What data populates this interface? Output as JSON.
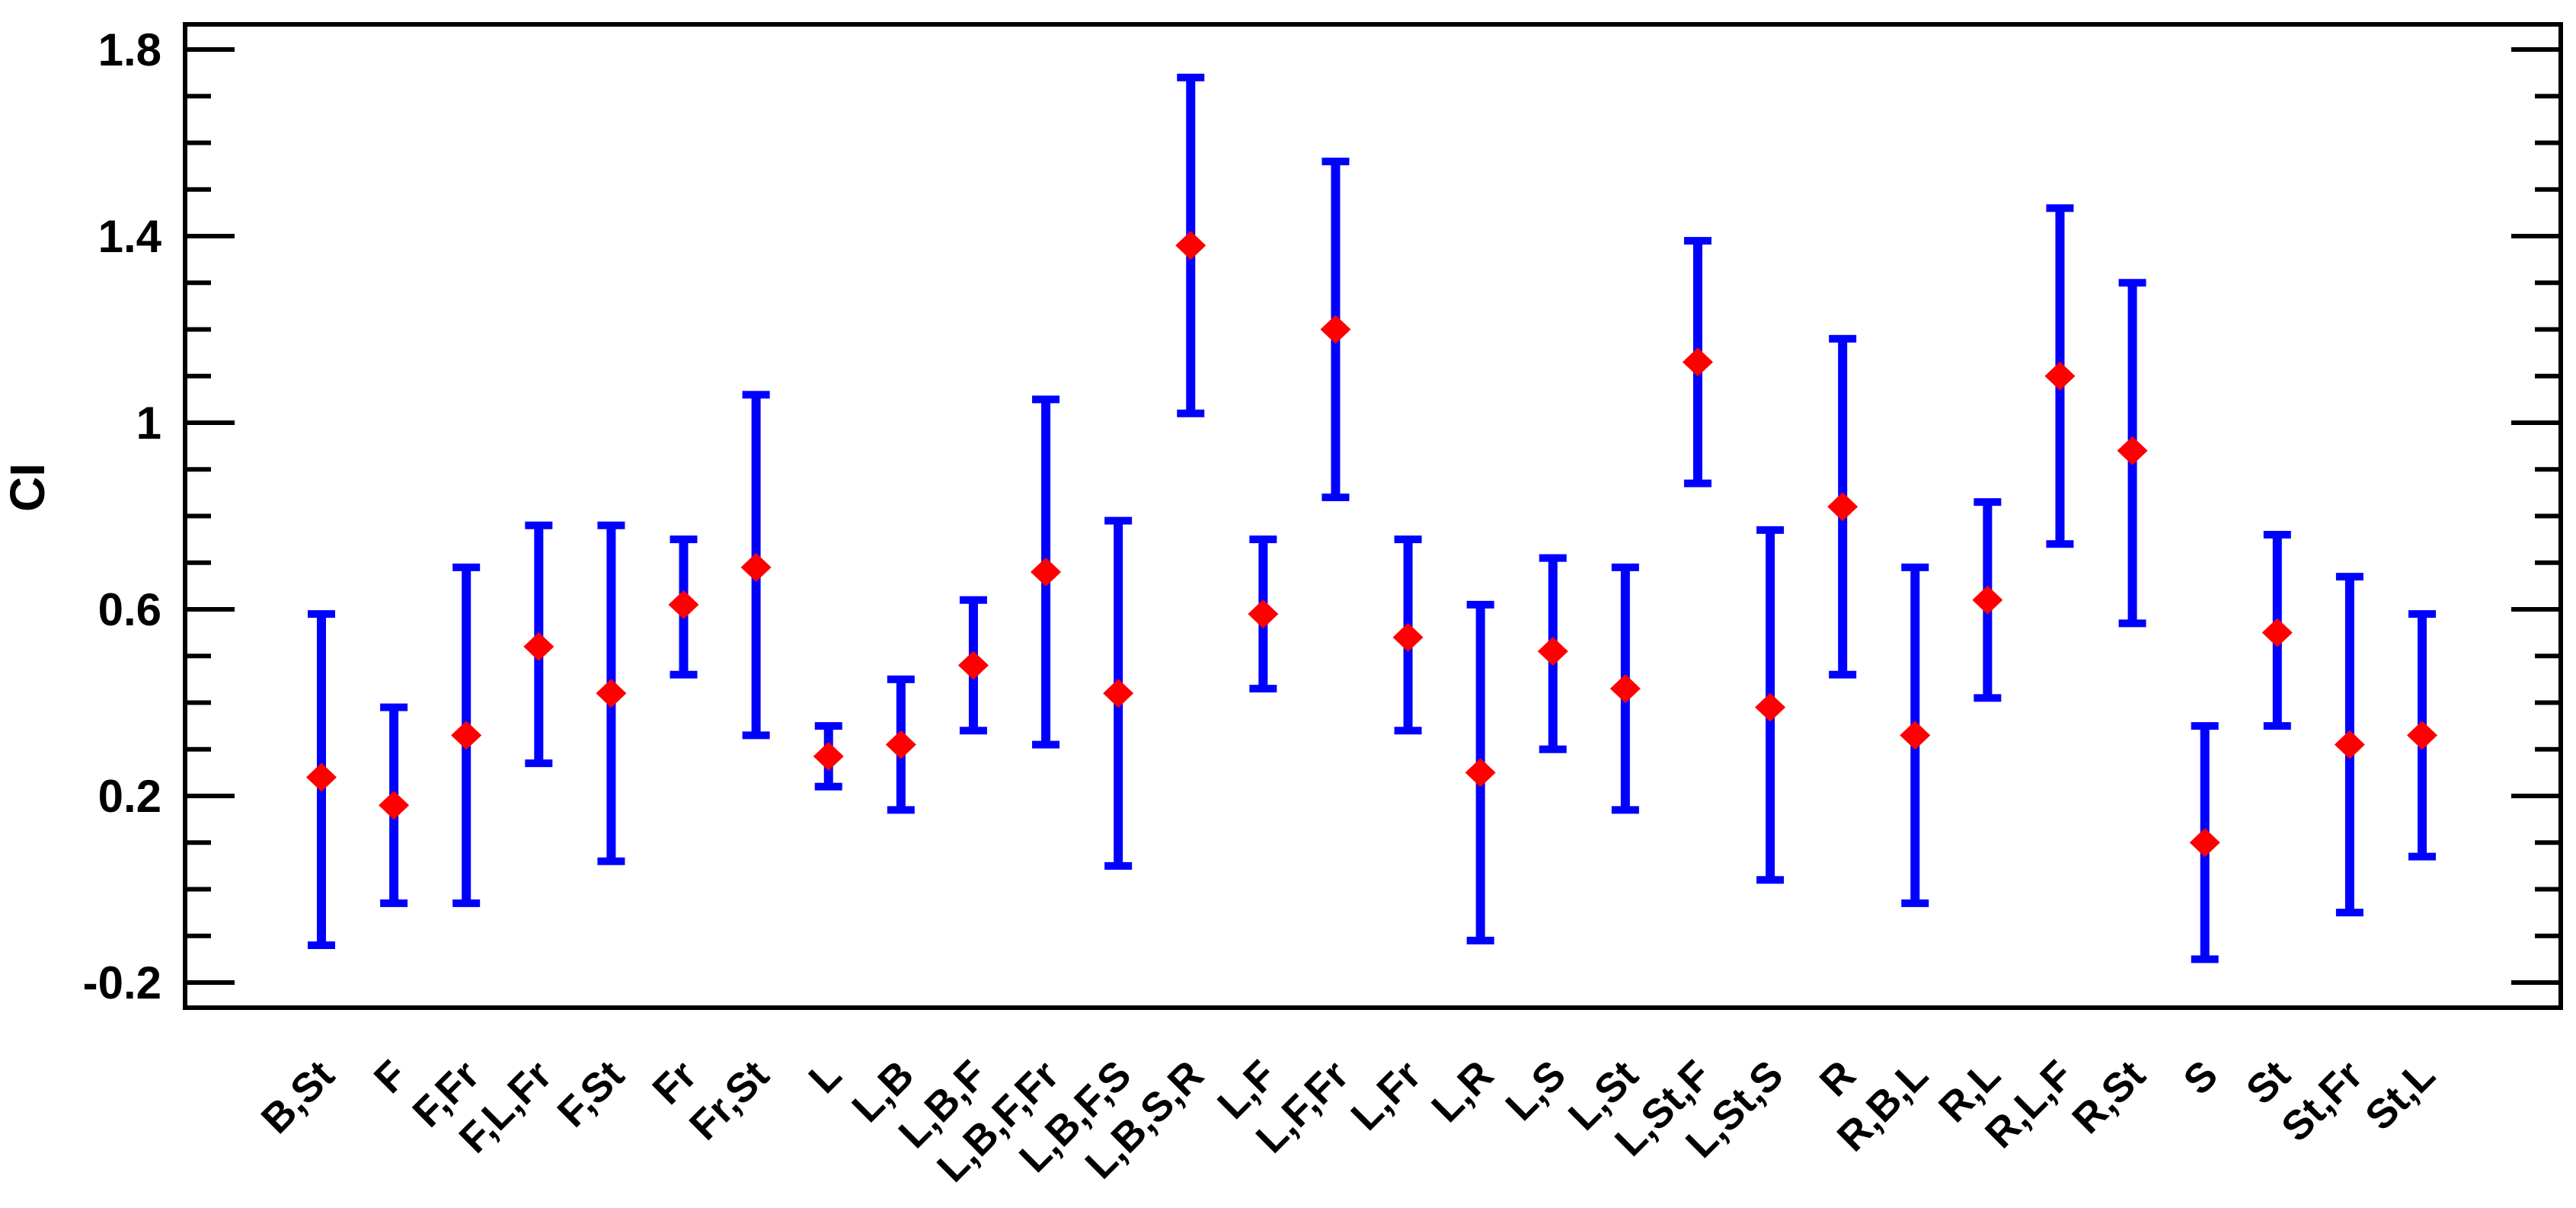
{
  "figure": {
    "background": "#ffffff",
    "title": ""
  },
  "chart_data": {
    "type": "scatter",
    "title": "",
    "xlabel": "",
    "ylabel": "CI",
    "ylim": [
      -0.254,
      1.854
    ],
    "grid": false,
    "legend": null,
    "yaxis": {
      "tick_values": [
        -0.2,
        0.2,
        0.6,
        1.0,
        1.4,
        1.8
      ],
      "tick_labels": [
        "-0.2",
        "0.2",
        "0.6",
        "1",
        "1.4",
        "1.8"
      ],
      "minor_step": 0.1,
      "ticks_on_both_sides": true
    },
    "xaxis": {
      "label_rotation_deg": -45,
      "tick_marks": false
    },
    "style": {
      "marker_shape": "diamond",
      "marker_color": "#ff0000",
      "marker_half_width": 20,
      "marker_half_height": 19,
      "error_bar_color": "#0000ff",
      "error_bar_line_width": 12,
      "error_bar_cap_half_width": 18,
      "error_bar_cap_thickness": 10,
      "frame_color": "#000000",
      "frame_line_width": 6,
      "tick_color": "#000000",
      "major_tick_length": 62,
      "minor_tick_length": 31
    },
    "categories": [
      "B,St",
      "F",
      "F,Fr",
      "F,L,Fr",
      "F,St",
      "Fr",
      "Fr,St",
      "L",
      "L,B",
      "L,B,F",
      "L,B,F,Fr",
      "L,B,F,S",
      "L,B,S,R",
      "L,F",
      "L,F,Fr",
      "L,Fr",
      "L,R",
      "L,S",
      "L,St",
      "L,St,F",
      "L,St,S",
      "R",
      "R,B,L",
      "R,L",
      "R,L,F",
      "R,St",
      "S",
      "St",
      "St,Fr",
      "St,L"
    ],
    "points": [
      {
        "label": "B,St",
        "y": 0.24,
        "y_low": -0.12,
        "y_high": 0.59
      },
      {
        "label": "F",
        "y": 0.18,
        "y_low": -0.03,
        "y_high": 0.39
      },
      {
        "label": "F,Fr",
        "y": 0.33,
        "y_low": -0.03,
        "y_high": 0.69
      },
      {
        "label": "F,L,Fr",
        "y": 0.52,
        "y_low": 0.27,
        "y_high": 0.78
      },
      {
        "label": "F,St",
        "y": 0.42,
        "y_low": 0.06,
        "y_high": 0.78
      },
      {
        "label": "Fr",
        "y": 0.61,
        "y_low": 0.46,
        "y_high": 0.75
      },
      {
        "label": "Fr,St",
        "y": 0.69,
        "y_low": 0.33,
        "y_high": 1.06
      },
      {
        "label": "L",
        "y": 0.285,
        "y_low": 0.22,
        "y_high": 0.35
      },
      {
        "label": "L,B",
        "y": 0.31,
        "y_low": 0.17,
        "y_high": 0.45
      },
      {
        "label": "L,B,F",
        "y": 0.48,
        "y_low": 0.34,
        "y_high": 0.62
      },
      {
        "label": "L,B,F,Fr",
        "y": 0.68,
        "y_low": 0.31,
        "y_high": 1.05
      },
      {
        "label": "L,B,F,S",
        "y": 0.42,
        "y_low": 0.05,
        "y_high": 0.79
      },
      {
        "label": "L,B,S,R",
        "y": 1.38,
        "y_low": 1.02,
        "y_high": 1.74
      },
      {
        "label": "L,F",
        "y": 0.59,
        "y_low": 0.43,
        "y_high": 0.75
      },
      {
        "label": "L,F,Fr",
        "y": 1.2,
        "y_low": 0.84,
        "y_high": 1.56
      },
      {
        "label": "L,Fr",
        "y": 0.54,
        "y_low": 0.34,
        "y_high": 0.75
      },
      {
        "label": "L,R",
        "y": 0.25,
        "y_low": -0.11,
        "y_high": 0.61
      },
      {
        "label": "L,S",
        "y": 0.51,
        "y_low": 0.3,
        "y_high": 0.71
      },
      {
        "label": "L,St",
        "y": 0.43,
        "y_low": 0.17,
        "y_high": 0.69
      },
      {
        "label": "L,St,F",
        "y": 1.13,
        "y_low": 0.87,
        "y_high": 1.39
      },
      {
        "label": "L,St,S",
        "y": 0.39,
        "y_low": 0.02,
        "y_high": 0.77
      },
      {
        "label": "R",
        "y": 0.82,
        "y_low": 0.46,
        "y_high": 1.18
      },
      {
        "label": "R,B,L",
        "y": 0.33,
        "y_low": -0.03,
        "y_high": 0.69
      },
      {
        "label": "R,L",
        "y": 0.62,
        "y_low": 0.41,
        "y_high": 0.83
      },
      {
        "label": "R,L,F",
        "y": 1.1,
        "y_low": 0.74,
        "y_high": 1.46
      },
      {
        "label": "R,St",
        "y": 0.94,
        "y_low": 0.57,
        "y_high": 1.3
      },
      {
        "label": "S",
        "y": 0.1,
        "y_low": -0.15,
        "y_high": 0.35
      },
      {
        "label": "St",
        "y": 0.55,
        "y_low": 0.35,
        "y_high": 0.76
      },
      {
        "label": "St,Fr",
        "y": 0.31,
        "y_low": -0.05,
        "y_high": 0.67
      },
      {
        "label": "St,L",
        "y": 0.33,
        "y_low": 0.07,
        "y_high": 0.59
      }
    ]
  }
}
